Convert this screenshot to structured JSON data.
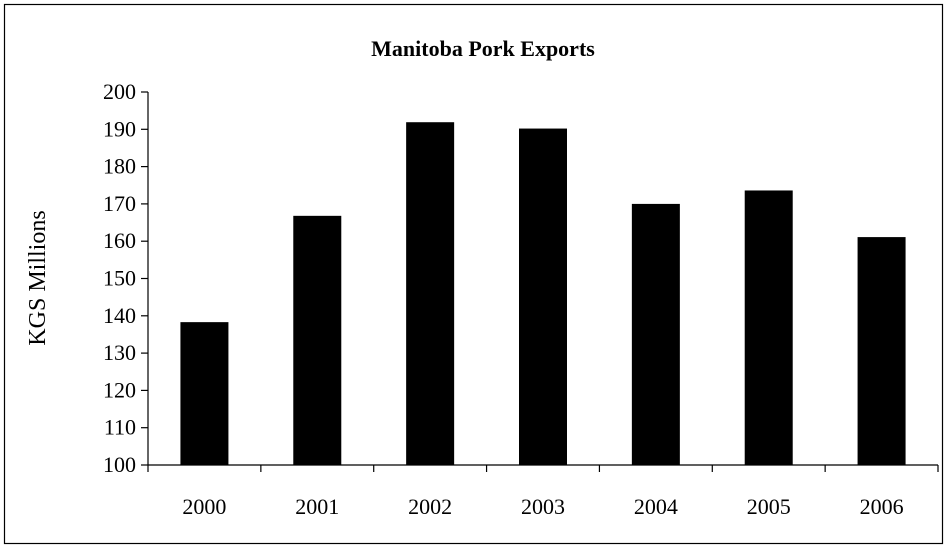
{
  "chart_data": {
    "type": "bar",
    "title": "Manitoba Pork Exports",
    "xlabel": "",
    "ylabel": "KGS Millions",
    "categories": [
      "2000",
      "2001",
      "2002",
      "2003",
      "2004",
      "2005",
      "2006"
    ],
    "values": [
      138.3,
      166.8,
      191.9,
      190.2,
      170.0,
      173.6,
      161.1
    ],
    "ylim": [
      100,
      200
    ],
    "yticks": [
      "100",
      "110",
      "120",
      "130",
      "140",
      "150",
      "160",
      "170",
      "180",
      "190",
      "200"
    ],
    "grid": false,
    "legend": "none",
    "colors": {
      "bar": "#000000",
      "axis": "#000000",
      "background": "#ffffff"
    }
  }
}
